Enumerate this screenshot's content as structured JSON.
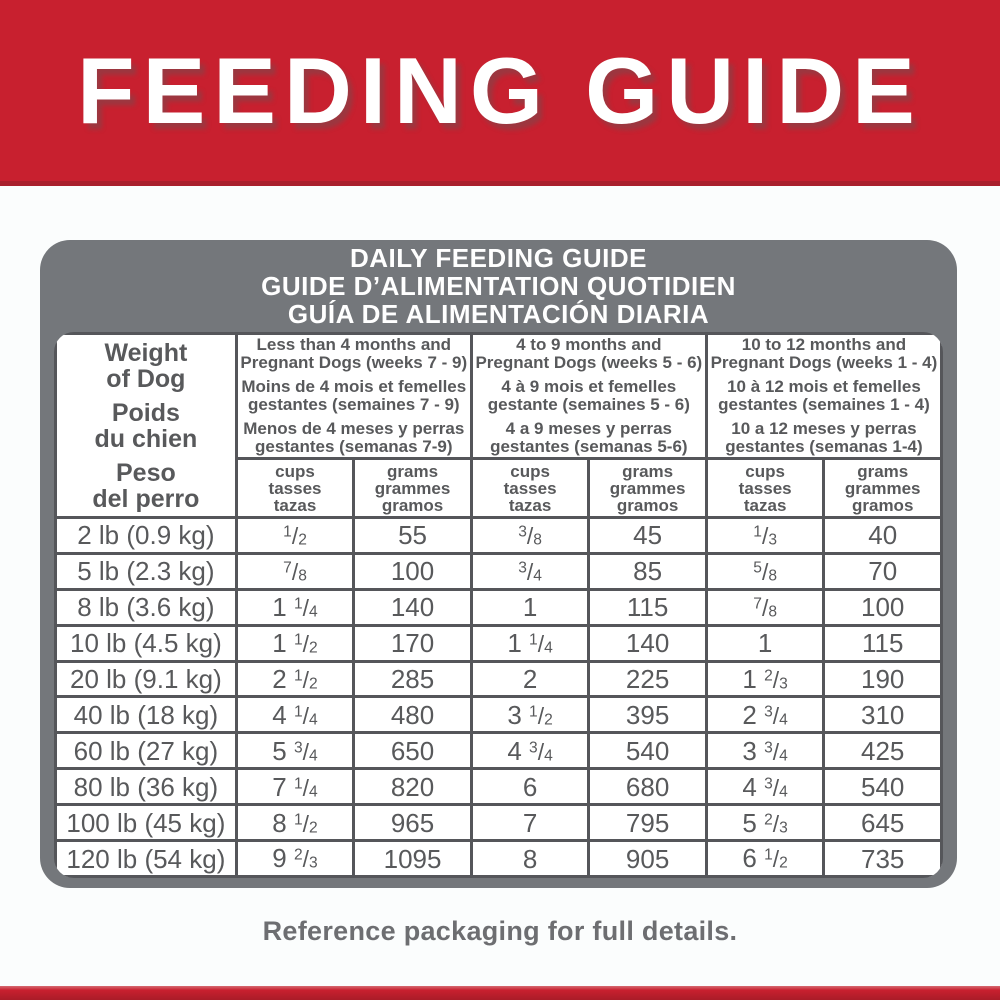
{
  "banner": {
    "title": "FEEDING GUIDE"
  },
  "colors": {
    "brand_red": "#C8202F",
    "brand_red_dark": "#A91C28",
    "card_gray": "#74777B",
    "table_border": "#55565A",
    "table_text": "#58595B",
    "footer_text": "#6D6E71"
  },
  "card": {
    "title_lines": [
      "DAILY FEEDING GUIDE",
      "GUIDE D’ALIMENTATION QUOTIDIEN",
      "GUÍA DE ALIMENTACIÓN DIARIA"
    ],
    "weight_header": {
      "en": [
        "Weight",
        "of Dog"
      ],
      "fr": [
        "Poids",
        "du chien"
      ],
      "es": [
        "Peso",
        "del perro"
      ]
    },
    "age_groups": [
      {
        "en": [
          "Less than 4 months and",
          "Pregnant Dogs (weeks 7 - 9)"
        ],
        "fr": [
          "Moins de 4 mois et femelles",
          "gestantes (semaines 7 - 9)"
        ],
        "es": [
          "Menos de 4 meses y perras",
          "gestantes (semanas 7-9)"
        ]
      },
      {
        "en": [
          "4 to 9 months and",
          "Pregnant Dogs (weeks 5 - 6)"
        ],
        "fr": [
          "4 à 9 mois et femelles",
          "gestante (semaines 5 - 6)"
        ],
        "es": [
          "4 a 9 meses y perras",
          "gestantes (semanas 5-6)"
        ]
      },
      {
        "en": [
          "10 to 12 months and",
          "Pregnant Dogs (weeks 1 - 4)"
        ],
        "fr": [
          "10 à 12 mois et femelles",
          "gestantes (semaines 1 - 4)"
        ],
        "es": [
          "10 a 12 meses y perras",
          "gestantes (semanas 1-4)"
        ]
      }
    ],
    "units": {
      "cups": [
        "cups",
        "tasses",
        "tazas"
      ],
      "grams": [
        "grams",
        "grammes",
        "gramos"
      ]
    },
    "rows": [
      [
        "2 lb (0.9 kg)",
        "1/2",
        "55",
        "3/8",
        "45",
        "1/3",
        "40"
      ],
      [
        "5 lb (2.3 kg)",
        "7/8",
        "100",
        "3/4",
        "85",
        "5/8",
        "70"
      ],
      [
        "8 lb (3.6 kg)",
        "1 1/4",
        "140",
        "1",
        "115",
        "7/8",
        "100"
      ],
      [
        "10 lb (4.5 kg)",
        "1 1/2",
        "170",
        "1 1/4",
        "140",
        "1",
        "115"
      ],
      [
        "20 lb (9.1 kg)",
        "2 1/2",
        "285",
        "2",
        "225",
        "1 2/3",
        "190"
      ],
      [
        "40 lb (18 kg)",
        "4 1/4",
        "480",
        "3 1/2",
        "395",
        "2 3/4",
        "310"
      ],
      [
        "60 lb (27 kg)",
        "5 3/4",
        "650",
        "4 3/4",
        "540",
        "3 3/4",
        "425"
      ],
      [
        "80 lb (36 kg)",
        "7 1/4",
        "820",
        "6",
        "680",
        "4 3/4",
        "540"
      ],
      [
        "100 lb (45 kg)",
        "8 1/2",
        "965",
        "7",
        "795",
        "5 2/3",
        "645"
      ],
      [
        "120 lb (54 kg)",
        "9 2/3",
        "1095",
        "8",
        "905",
        "6 1/2",
        "735"
      ]
    ]
  },
  "footer": {
    "note": "Reference packaging for full details."
  }
}
